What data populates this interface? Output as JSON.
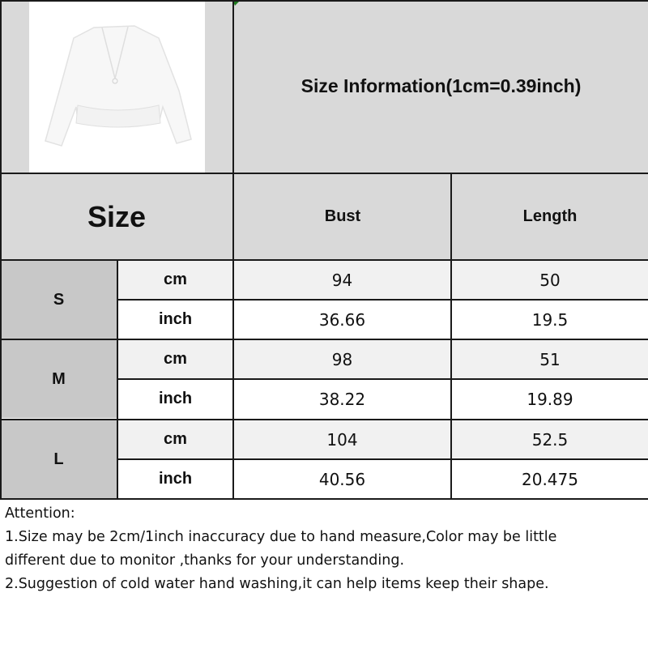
{
  "header": {
    "product_image": "white v-neck long sleeve tie-front peplum blouse",
    "title": "Size Information(1cm=0.39inch)"
  },
  "table": {
    "size_header": "Size",
    "columns": [
      "Bust",
      "Length"
    ],
    "rows": [
      {
        "size": "S",
        "units": [
          {
            "unit": "cm",
            "values": [
              "94",
              "50"
            ]
          },
          {
            "unit": "inch",
            "values": [
              "36.66",
              "19.5"
            ]
          }
        ]
      },
      {
        "size": "M",
        "units": [
          {
            "unit": "cm",
            "values": [
              "98",
              "51"
            ]
          },
          {
            "unit": "inch",
            "values": [
              "38.22",
              "19.89"
            ]
          }
        ]
      },
      {
        "size": "L",
        "units": [
          {
            "unit": "cm",
            "values": [
              "104",
              "52.5"
            ]
          },
          {
            "unit": "inch",
            "values": [
              "40.56",
              "20.475"
            ]
          }
        ]
      }
    ]
  },
  "attention": {
    "heading": "Attention:",
    "lines": [
      "1.Size may be 2cm/1inch inaccuracy due to hand measure,Color may be little",
      "different due to monitor ,thanks for your understanding.",
      "2.Suggestion of cold water hand washing,it can help items keep their shape."
    ]
  },
  "colors": {
    "header_gray": "#d9d9d9",
    "size_col_gray": "#c8c8c8",
    "cm_row": "#f1f1f1",
    "border": "#1a1a1a"
  }
}
